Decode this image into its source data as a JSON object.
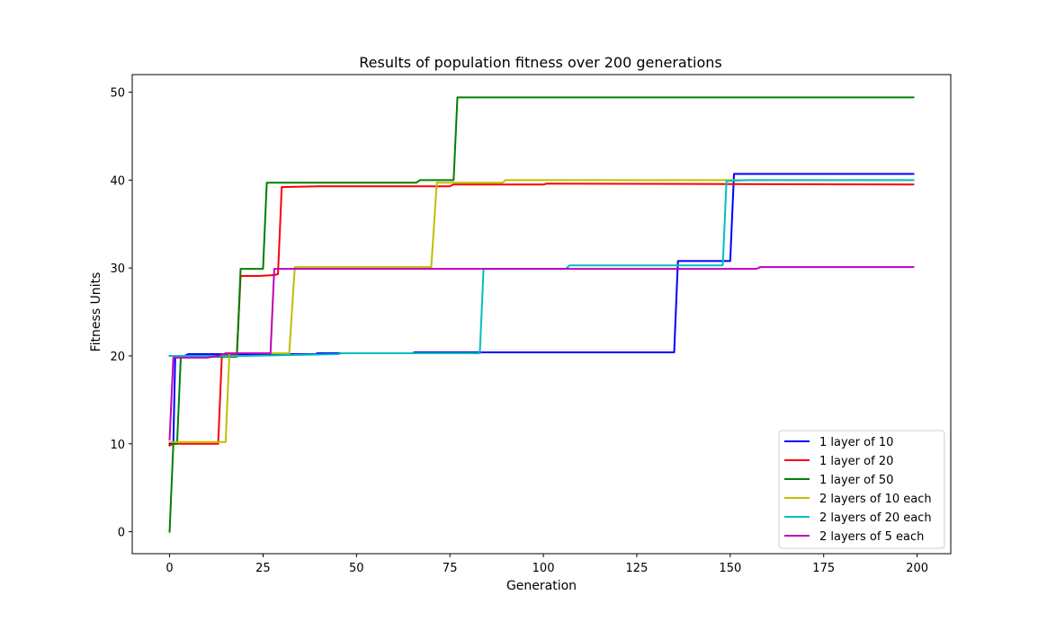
{
  "chart_data": {
    "type": "line",
    "title": "Results of population fitness over 200 generations",
    "xlabel": "Generation",
    "ylabel": "Fitness Units",
    "xlim": [
      -10,
      209
    ],
    "ylim": [
      -2.5,
      52.0
    ],
    "xticks": [
      0,
      25,
      50,
      75,
      100,
      125,
      150,
      175,
      200
    ],
    "yticks": [
      0,
      10,
      20,
      30,
      40,
      50
    ],
    "grid": false,
    "legend_position": "lower-right",
    "series": [
      {
        "name": "1 layer of 10",
        "color": "#0000ff",
        "points": [
          [
            0,
            10
          ],
          [
            1,
            10
          ],
          [
            1.5,
            19.9
          ],
          [
            4,
            20
          ],
          [
            5,
            20.2
          ],
          [
            20,
            20.2
          ],
          [
            39,
            20.2
          ],
          [
            39.5,
            20.3
          ],
          [
            65,
            20.3
          ],
          [
            65.5,
            20.4
          ],
          [
            135,
            20.4
          ],
          [
            136,
            30.8
          ],
          [
            150,
            30.8
          ],
          [
            151,
            40.7
          ],
          [
            199,
            40.7
          ]
        ]
      },
      {
        "name": "1 layer of 20",
        "color": "#ff0000",
        "points": [
          [
            0,
            9.8
          ],
          [
            1,
            10
          ],
          [
            13,
            10
          ],
          [
            14,
            20.2
          ],
          [
            18,
            20.2
          ],
          [
            19,
            29.1
          ],
          [
            24,
            29.1
          ],
          [
            28,
            29.2
          ],
          [
            29,
            29.3
          ],
          [
            30,
            39.2
          ],
          [
            40,
            39.3
          ],
          [
            75,
            39.3
          ],
          [
            76,
            39.5
          ],
          [
            100,
            39.5
          ],
          [
            101,
            39.6
          ],
          [
            199,
            39.5
          ]
        ]
      },
      {
        "name": "1 layer of 50",
        "color": "#008000",
        "points": [
          [
            0,
            0
          ],
          [
            1,
            10
          ],
          [
            2,
            10
          ],
          [
            3,
            19.9
          ],
          [
            16,
            19.9
          ],
          [
            18,
            19.9
          ],
          [
            19,
            29.9
          ],
          [
            25,
            29.9
          ],
          [
            26,
            39.7
          ],
          [
            66,
            39.7
          ],
          [
            67,
            40
          ],
          [
            76,
            40
          ],
          [
            77,
            49.4
          ],
          [
            199,
            49.4
          ]
        ]
      },
      {
        "name": "2 layers of 10 each",
        "color": "#bfbf00",
        "points": [
          [
            0,
            10.2
          ],
          [
            1,
            10.2
          ],
          [
            15,
            10.2
          ],
          [
            16,
            20.3
          ],
          [
            32,
            20.3
          ],
          [
            33.5,
            30.1
          ],
          [
            70,
            30.1
          ],
          [
            71.5,
            39.7
          ],
          [
            89,
            39.7
          ],
          [
            90,
            40
          ],
          [
            199,
            40
          ]
        ]
      },
      {
        "name": "2 layers of 20 each",
        "color": "#00bfbf",
        "points": [
          [
            0,
            20
          ],
          [
            5,
            20
          ],
          [
            20,
            20
          ],
          [
            45,
            20.2
          ],
          [
            46,
            20.3
          ],
          [
            83,
            20.3
          ],
          [
            84,
            29.9
          ],
          [
            106,
            29.9
          ],
          [
            107,
            30.3
          ],
          [
            148,
            30.3
          ],
          [
            149,
            39.9
          ],
          [
            155,
            40
          ],
          [
            199,
            40
          ]
        ]
      },
      {
        "name": "2 layers of 5 each",
        "color": "#bf00bf",
        "points": [
          [
            0,
            10.5
          ],
          [
            1,
            19.8
          ],
          [
            10,
            19.8
          ],
          [
            13,
            20
          ],
          [
            15,
            20.3
          ],
          [
            27,
            20.3
          ],
          [
            28,
            29.9
          ],
          [
            157,
            29.9
          ],
          [
            158,
            30.1
          ],
          [
            199,
            30.1
          ]
        ]
      }
    ]
  }
}
